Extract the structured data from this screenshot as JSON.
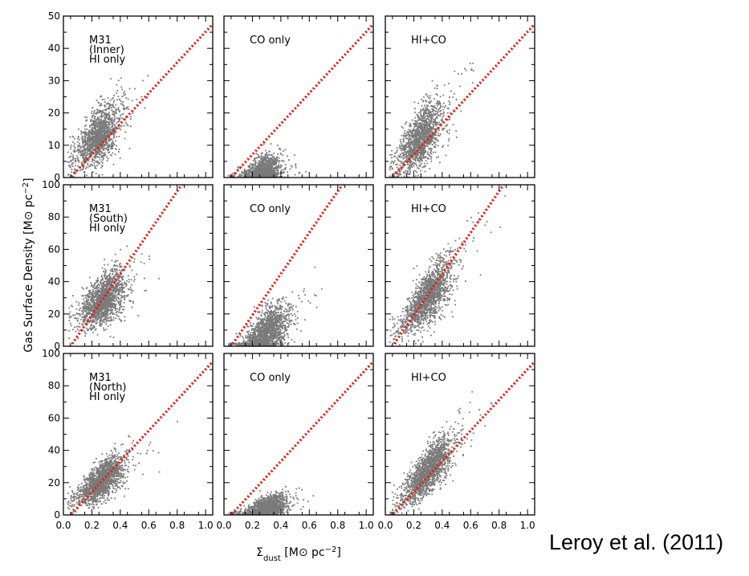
{
  "figure": {
    "ylabel_main": "Gas Surface Density [M",
    "ylabel_sun": "⊙",
    "ylabel_rest": " pc",
    "ylabel_exp": "−2",
    "ylabel_close": "]",
    "xlabel_sigma": "Σ",
    "xlabel_sub": "dust",
    "xlabel_rest": " [M",
    "xlabel_sun": "⊙",
    "xlabel_unit": " pc",
    "xlabel_exp": "−2",
    "xlabel_close": "]",
    "citation": "Leroy et al. (2011)"
  },
  "chart_data": {
    "type": "scatter",
    "colors": {
      "points": "#7a7a7a",
      "line": "#e0201a",
      "axes": "#000000"
    },
    "x_range": [
      0.0,
      1.05
    ],
    "x_ticks": [
      "0.0",
      "0.2",
      "0.4",
      "0.6",
      "0.8",
      "1.0"
    ],
    "rows": [
      {
        "label": "Inner",
        "y_range": [
          0,
          50
        ],
        "y_ticks": [
          "0",
          "10",
          "20",
          "30",
          "40",
          "50"
        ],
        "line_slope": 47.5
      },
      {
        "label": "South",
        "y_range": [
          0,
          100
        ],
        "y_ticks": [
          "0",
          "20",
          "40",
          "60",
          "80",
          "100"
        ],
        "line_slope": 128
      },
      {
        "label": "North",
        "y_range": [
          0,
          100
        ],
        "y_ticks": [
          "0",
          "20",
          "40",
          "60",
          "80",
          "100"
        ],
        "line_slope": 95
      }
    ],
    "panels": [
      {
        "row": 0,
        "col": 0,
        "text": [
          "M31",
          "(Inner)",
          "HI only"
        ],
        "cloud": {
          "x_center": 0.25,
          "x_spread": 0.13,
          "y_slope": 35,
          "y_offset": 4,
          "y_scatter": 4.5,
          "x_max": 0.8,
          "n": 1400
        }
      },
      {
        "row": 0,
        "col": 1,
        "text": [
          "CO only"
        ],
        "cloud": {
          "x_center": 0.28,
          "x_spread": 0.1,
          "y_slope": 10,
          "y_offset": -1,
          "y_scatter": 2.5,
          "x_max": 0.8,
          "n": 1200
        }
      },
      {
        "row": 0,
        "col": 2,
        "text": [
          "HI+CO"
        ],
        "cloud": {
          "x_center": 0.25,
          "x_spread": 0.13,
          "y_slope": 44,
          "y_offset": 1,
          "y_scatter": 5,
          "x_max": 0.8,
          "n": 1400
        }
      },
      {
        "row": 1,
        "col": 0,
        "text": [
          "M31",
          "(South)",
          "HI only"
        ],
        "cloud": {
          "x_center": 0.28,
          "x_spread": 0.13,
          "y_slope": 60,
          "y_offset": 12,
          "y_scatter": 8,
          "x_max": 0.95,
          "n": 1600
        }
      },
      {
        "row": 1,
        "col": 1,
        "text": [
          "CO only"
        ],
        "cloud": {
          "x_center": 0.3,
          "x_spread": 0.13,
          "y_slope": 55,
          "y_offset": -8,
          "y_scatter": 7,
          "x_max": 0.95,
          "n": 1500
        }
      },
      {
        "row": 1,
        "col": 2,
        "text": [
          "HI+CO"
        ],
        "cloud": {
          "x_center": 0.3,
          "x_spread": 0.15,
          "y_slope": 95,
          "y_offset": 2,
          "y_scatter": 8,
          "x_max": 0.95,
          "n": 1600
        }
      },
      {
        "row": 2,
        "col": 0,
        "text": [
          "M31",
          "(North)",
          "HI only"
        ],
        "cloud": {
          "x_center": 0.27,
          "x_spread": 0.14,
          "y_slope": 60,
          "y_offset": 5,
          "y_scatter": 6,
          "x_max": 0.95,
          "n": 1600
        }
      },
      {
        "row": 2,
        "col": 1,
        "text": [
          "CO only"
        ],
        "cloud": {
          "x_center": 0.3,
          "x_spread": 0.12,
          "y_slope": 25,
          "y_offset": -3,
          "y_scatter": 3.5,
          "x_max": 1.0,
          "n": 1400
        }
      },
      {
        "row": 2,
        "col": 2,
        "text": [
          "HI+CO"
        ],
        "cloud": {
          "x_center": 0.3,
          "x_spread": 0.15,
          "y_slope": 90,
          "y_offset": 0,
          "y_scatter": 7,
          "x_max": 1.0,
          "n": 1600
        }
      }
    ]
  }
}
